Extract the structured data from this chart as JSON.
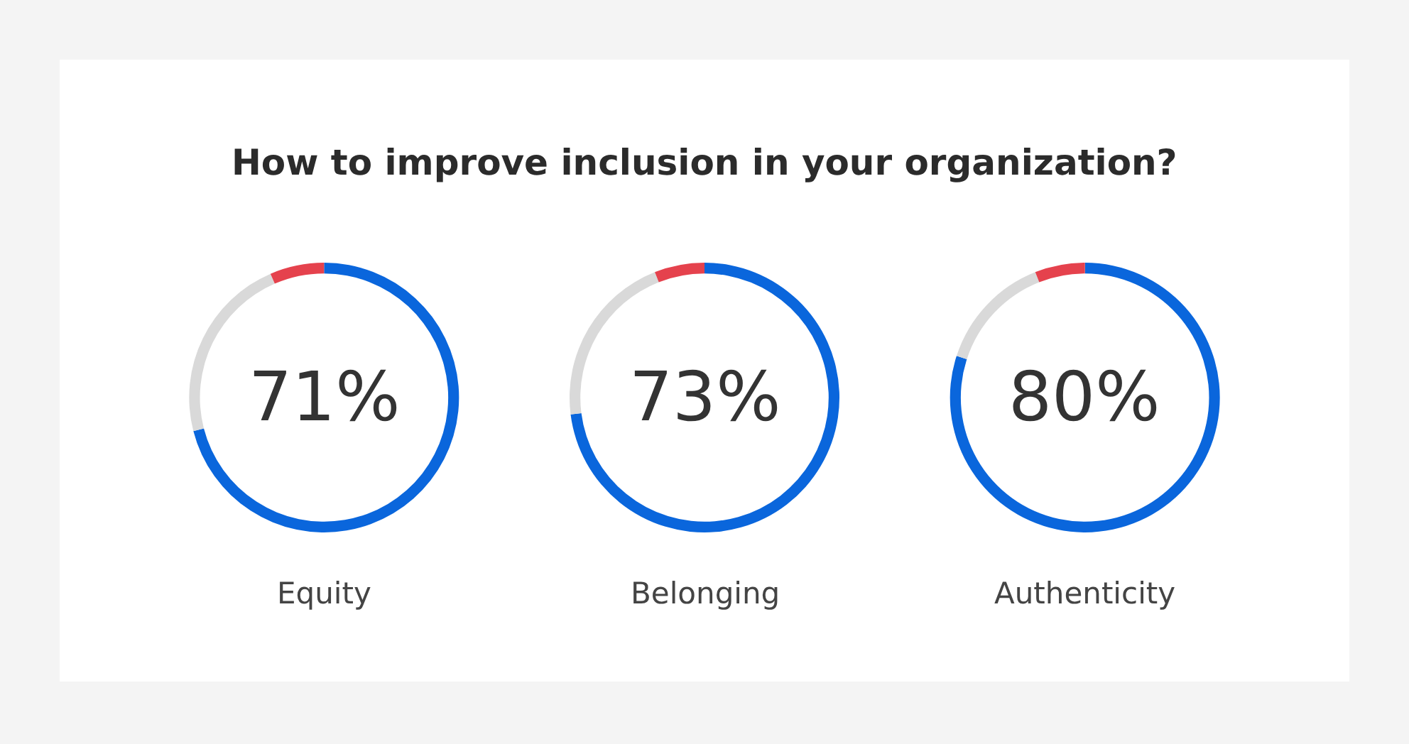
{
  "chart_data": [
    {
      "type": "donut",
      "title": "How to improve inclusion in your organization?",
      "xlabel": "Equity",
      "categories": [
        null,
        null,
        null
      ],
      "values": [
        71,
        22.5,
        6.5
      ],
      "colors": [
        "#0a66dc",
        "#d9d9d9",
        "#e5424d"
      ],
      "annotations": [
        "71%"
      ]
    },
    {
      "type": "donut",
      "xlabel": "Belonging",
      "categories": [
        null,
        null,
        null
      ],
      "values": [
        73,
        21,
        6
      ],
      "colors": [
        "#0a66dc",
        "#d9d9d9",
        "#e5424d"
      ],
      "annotations": [
        "73%"
      ]
    },
    {
      "type": "donut",
      "xlabel": "Authenticity",
      "categories": [
        null,
        null,
        null
      ],
      "values": [
        80,
        14,
        6
      ],
      "colors": [
        "#0a66dc",
        "#d9d9d9",
        "#e5424d"
      ],
      "annotations": [
        "80%"
      ]
    }
  ]
}
